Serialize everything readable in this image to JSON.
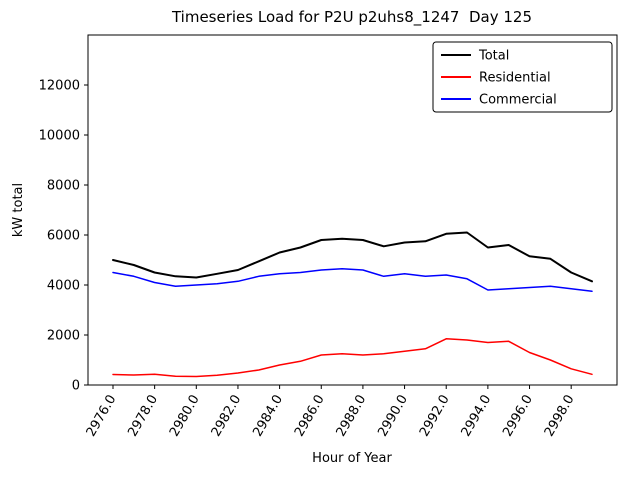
{
  "figure": {
    "background": "#ffffff"
  },
  "chart_data": {
    "type": "line",
    "title": "Timeseries Load for P2U p2uhs8_1247  Day 125",
    "xlabel": "Hour of Year",
    "ylabel": "kW total",
    "grid": false,
    "legend_position": "upper right",
    "xlim": [
      2974.8,
      3000.2
    ],
    "ylim": [
      0,
      14000
    ],
    "xticks": [
      2976,
      2978,
      2980,
      2982,
      2984,
      2986,
      2988,
      2990,
      2992,
      2994,
      2996,
      2998
    ],
    "xtick_labels": [
      "2976.0",
      "2978.0",
      "2980.0",
      "2982.0",
      "2984.0",
      "2986.0",
      "2988.0",
      "2990.0",
      "2992.0",
      "2994.0",
      "2996.0",
      "2998.0"
    ],
    "yticks": [
      0,
      2000,
      4000,
      6000,
      8000,
      10000,
      12000
    ],
    "x": [
      2976,
      2977,
      2978,
      2979,
      2980,
      2981,
      2982,
      2983,
      2984,
      2985,
      2986,
      2987,
      2988,
      2989,
      2990,
      2991,
      2992,
      2993,
      2994,
      2995,
      2996,
      2997,
      2998,
      2999
    ],
    "series": [
      {
        "name": "Total",
        "color": "#000000",
        "linewidth": 2,
        "values": [
          5000,
          4800,
          4500,
          4350,
          4300,
          4450,
          4600,
          4950,
          5300,
          5500,
          5800,
          5850,
          5800,
          5550,
          5700,
          5750,
          6050,
          6100,
          5500,
          5600,
          5150,
          5050,
          4500,
          4150
        ]
      },
      {
        "name": "Residential",
        "color": "#ff0000",
        "linewidth": 1.5,
        "values": [
          420,
          400,
          430,
          350,
          340,
          390,
          480,
          600,
          800,
          950,
          1200,
          1250,
          1200,
          1250,
          1350,
          1450,
          1850,
          1800,
          1700,
          1750,
          1300,
          1000,
          650,
          430
        ]
      },
      {
        "name": "Commercial",
        "color": "#0000ff",
        "linewidth": 1.5,
        "values": [
          4500,
          4350,
          4100,
          3950,
          4000,
          4050,
          4150,
          4350,
          4450,
          4500,
          4600,
          4650,
          4600,
          4350,
          4450,
          4350,
          4400,
          4250,
          3800,
          3850,
          3900,
          3950,
          3850,
          3750
        ]
      }
    ]
  }
}
